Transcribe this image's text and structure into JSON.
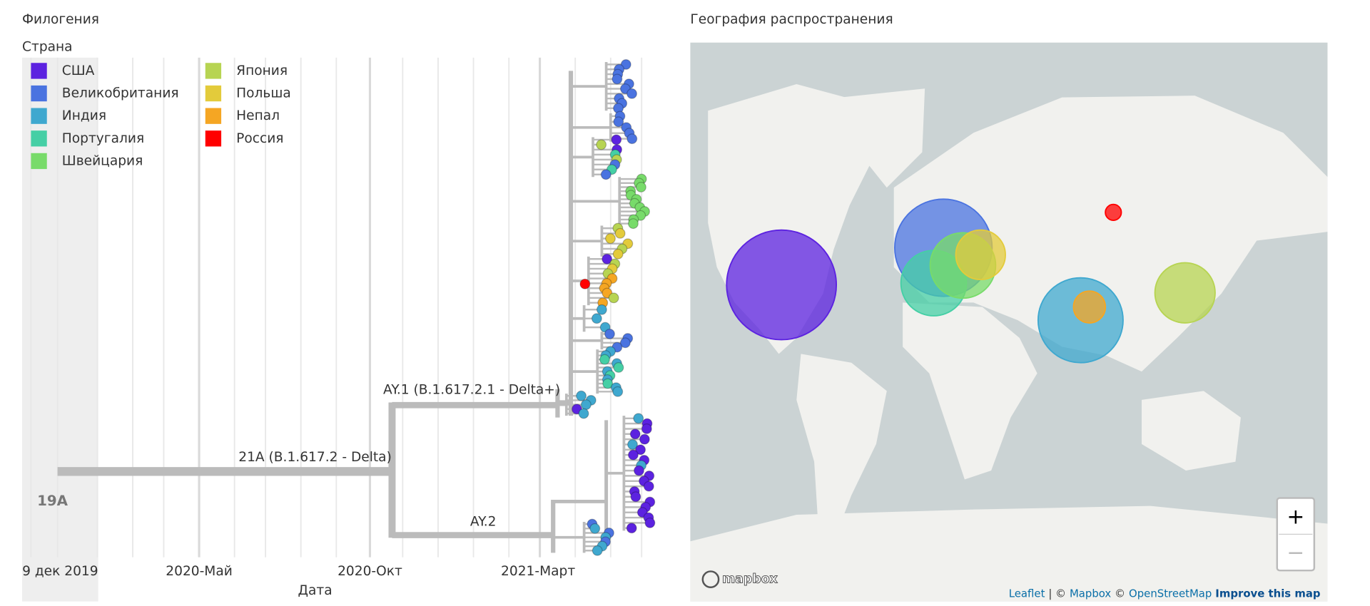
{
  "phylogeny": {
    "title": "Филогения",
    "legend_title": "Страна",
    "legend": [
      {
        "name": "США",
        "color": "#5c22e0"
      },
      {
        "name": "Великобритания",
        "color": "#4a73e0"
      },
      {
        "name": "Индия",
        "color": "#3fa8cf"
      },
      {
        "name": "Португалия",
        "color": "#45cfa5"
      },
      {
        "name": "Швейцария",
        "color": "#78db6a"
      },
      {
        "name": "Япония",
        "color": "#b7d452"
      },
      {
        "name": "Польша",
        "color": "#e3cb3b"
      },
      {
        "name": "Непал",
        "color": "#f5a623"
      },
      {
        "name": "Россия",
        "color": "#ff0000"
      }
    ],
    "clades": [
      "19A",
      "21A (B.1.617.2 - Delta)",
      "AY.1 (B.1.617.2.1 - Delta+)",
      "AY.2"
    ],
    "x_ticks": [
      "9 дек 2019",
      "2020-Май",
      "2020-Окт",
      "2021-Март"
    ],
    "x_label": "Дата"
  },
  "map": {
    "title": "География распространения",
    "zoom_in": "+",
    "zoom_out": "−",
    "logo": "mapbox",
    "attribution": [
      "Leaflet",
      "| ©",
      "Mapbox",
      "©",
      "OpenStreetMap",
      "Improve this map"
    ]
  }
}
